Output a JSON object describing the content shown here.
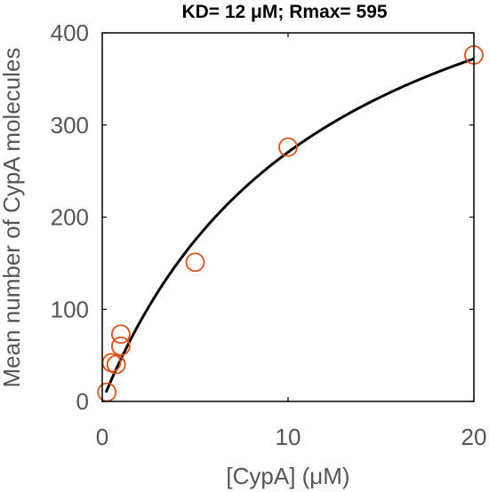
{
  "chart_data": {
    "type": "scatter",
    "title": "KD= 12 μM; Rmax= 595",
    "xlabel": "[CypA] (μM)",
    "ylabel": "Mean number of CypA molecules",
    "xlim": [
      0,
      20
    ],
    "ylim": [
      0,
      400
    ],
    "x_ticks": [
      0,
      10,
      20
    ],
    "y_ticks": [
      0,
      100,
      200,
      300,
      400
    ],
    "grid": false,
    "series": [
      {
        "kind": "points",
        "marker": "open-circle",
        "color": "#D95319",
        "x": [
          0.25,
          0.5,
          0.75,
          1.0,
          1.0,
          5.0,
          10.0,
          20.0
        ],
        "y": [
          10,
          42,
          40,
          60,
          73,
          151,
          276,
          376
        ]
      },
      {
        "kind": "fit",
        "color": "#000000",
        "model": "Rmax*x/(KD+x)",
        "params": {
          "KD": 12,
          "Rmax": 595
        },
        "x_range": [
          0.2,
          20
        ]
      }
    ]
  }
}
